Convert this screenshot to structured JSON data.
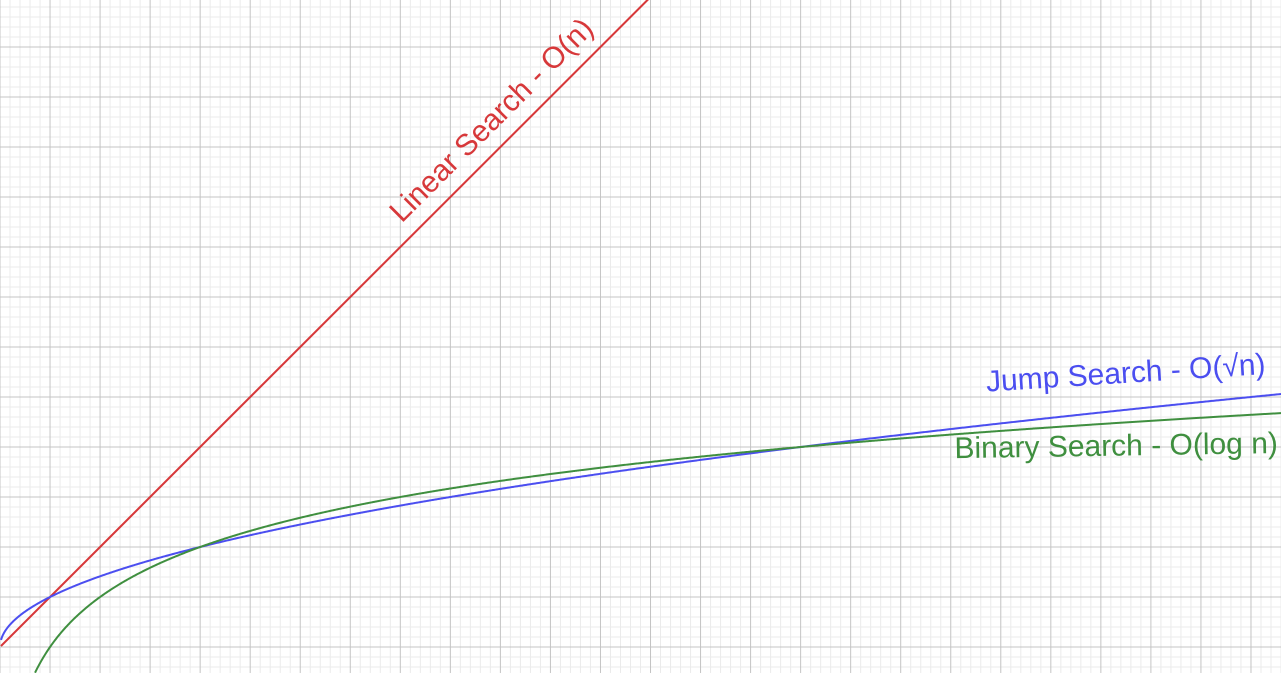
{
  "chart_data": {
    "type": "line",
    "title": "",
    "xlabel": "",
    "ylabel": "",
    "grid": true,
    "xlim": [
      0,
      25.6
    ],
    "ylim": [
      -0.52,
      12.94
    ],
    "series": [
      {
        "name": "Linear Search - O(n)",
        "function": "n",
        "color": "#d7383a"
      },
      {
        "name": "Jump Search - O(√n)",
        "function": "sqrt(n)",
        "color": "#4b4ef0"
      },
      {
        "name": "Binary Search - O(log n)",
        "function": "log2(n)",
        "color": "#3f8f3f"
      }
    ],
    "intersections": [
      {
        "x": 1,
        "y": 1
      },
      {
        "x": 2,
        "y": 1.414
      },
      {
        "x": 16,
        "y": 4
      }
    ]
  },
  "colors": {
    "background": "#ffffff",
    "grid_minor": "#ebebeb",
    "grid_major": "#c4c4c4"
  }
}
